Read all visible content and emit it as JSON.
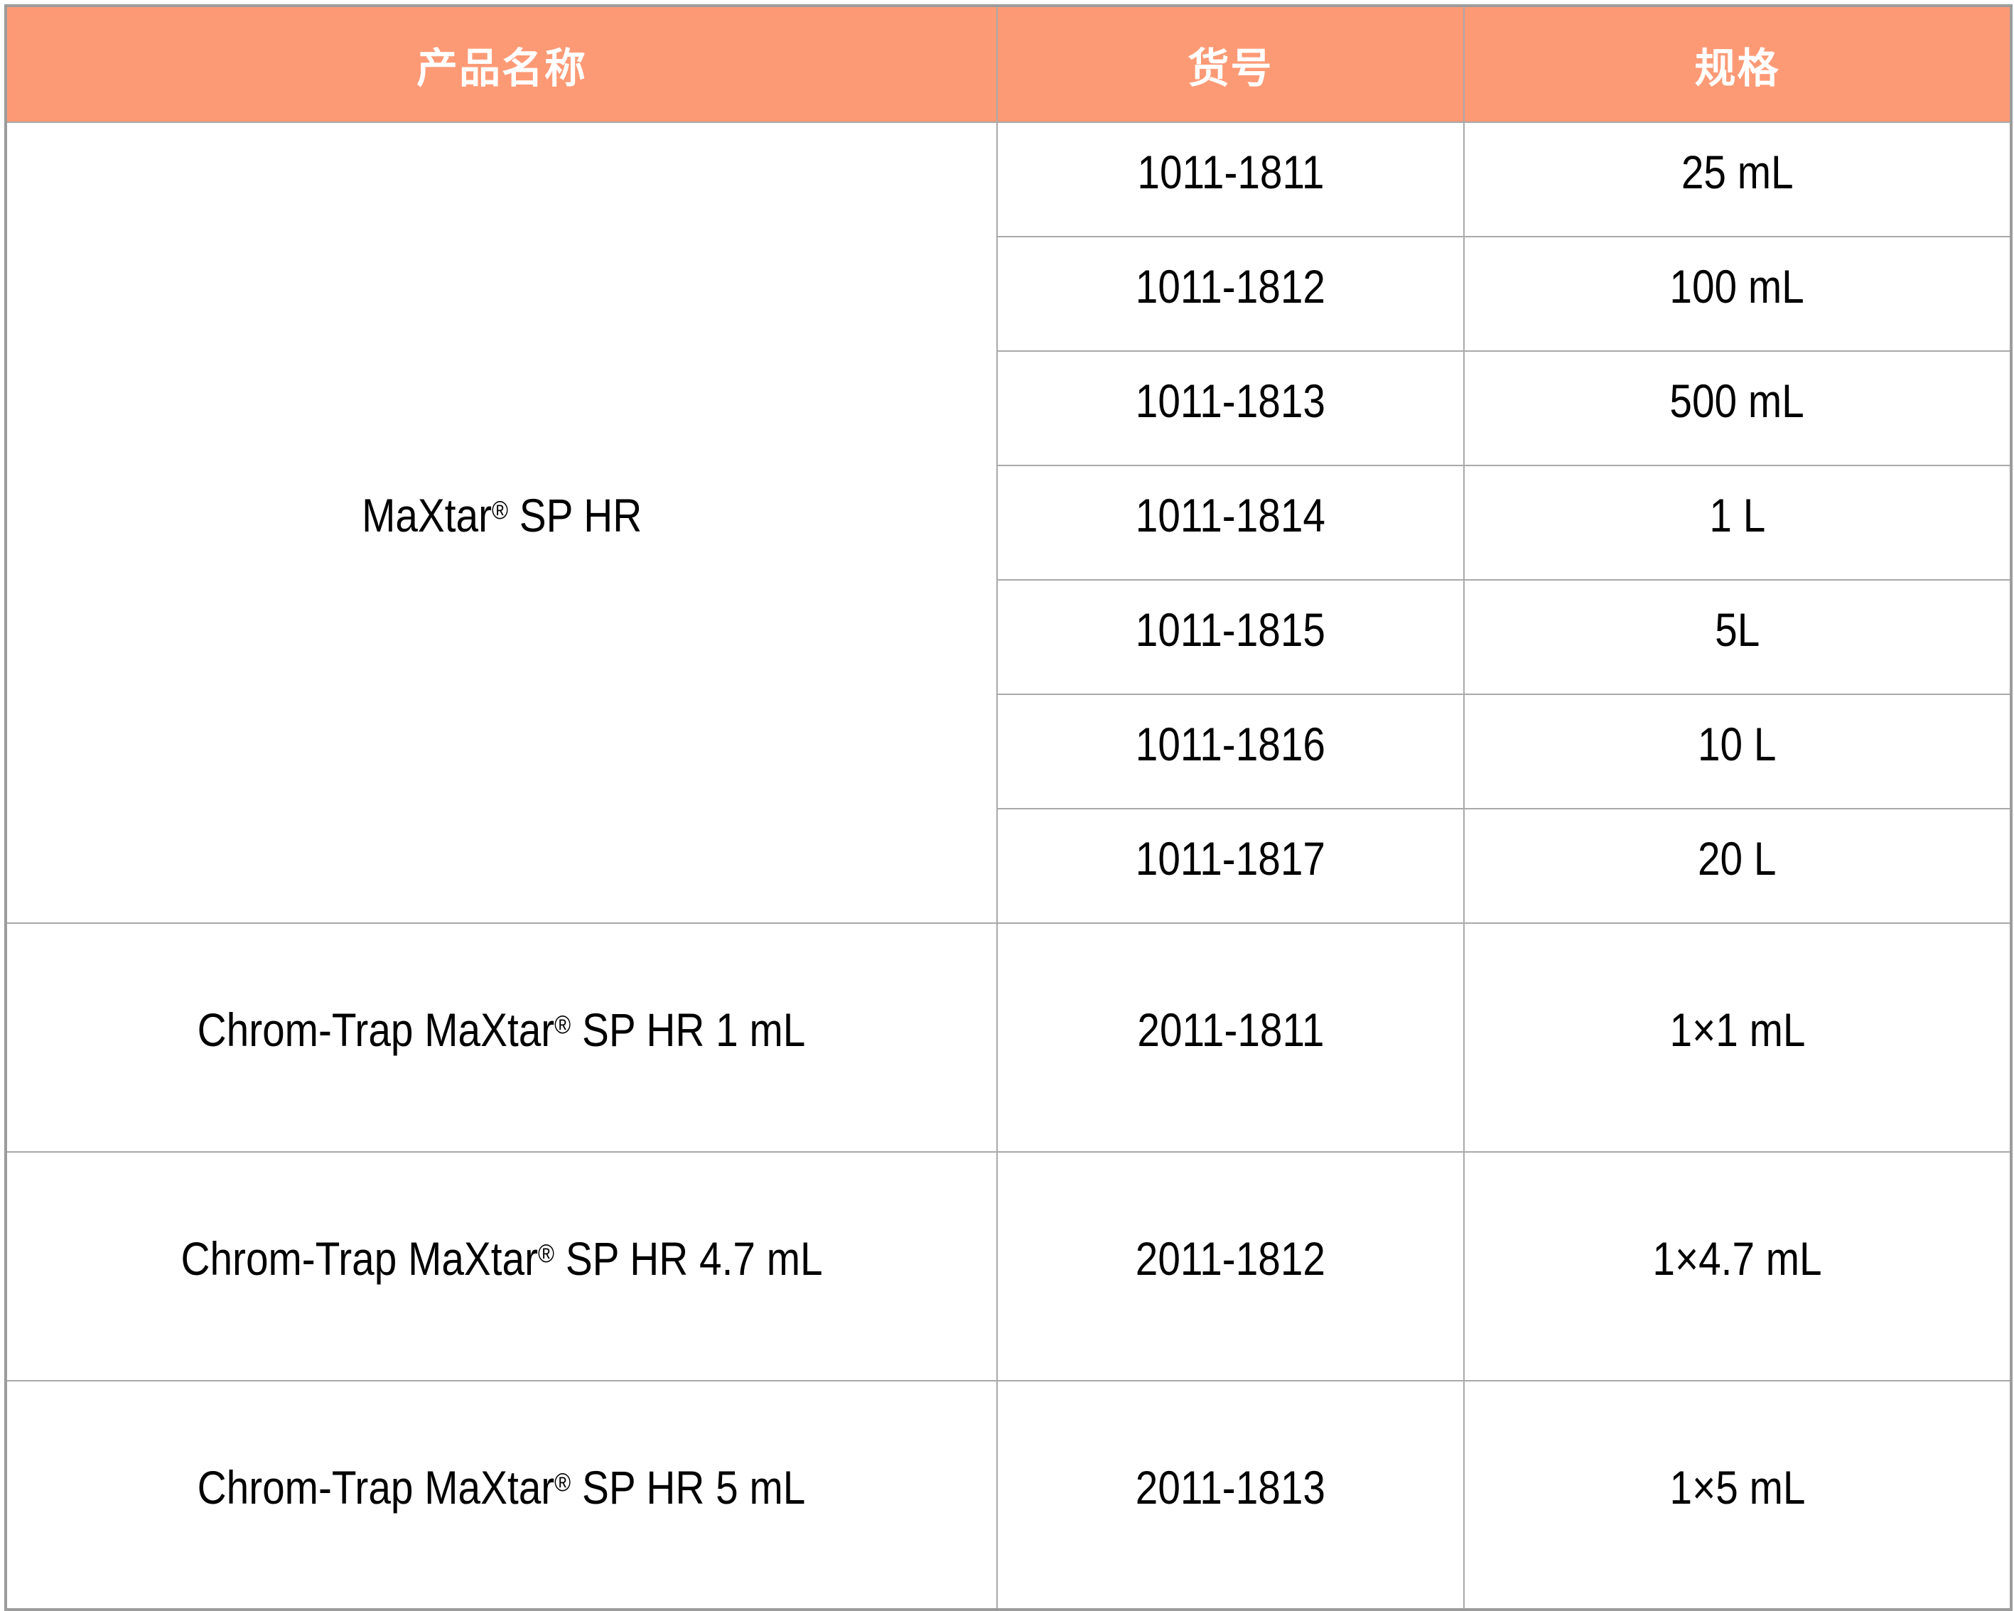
{
  "header": {
    "product_label": "产品名称",
    "catalog_label": "货号",
    "spec_label": "规格"
  },
  "groups": [
    {
      "product": {
        "pre": "MaXtar",
        "sup": "®",
        "post": " SP HR"
      },
      "items": [
        {
          "catalog": "1011-1811",
          "spec": "25 mL"
        },
        {
          "catalog": "1011-1812",
          "spec": "100 mL"
        },
        {
          "catalog": "1011-1813",
          "spec": "500 mL"
        },
        {
          "catalog": "1011-1814",
          "spec": "1 L"
        },
        {
          "catalog": "1011-1815",
          "spec": "5L"
        },
        {
          "catalog": "1011-1816",
          "spec": "10 L"
        },
        {
          "catalog": "1011-1817",
          "spec": "20 L"
        }
      ]
    },
    {
      "product": {
        "pre": "Chrom-Trap MaXtar",
        "sup": "®",
        "post": " SP HR 1 mL"
      },
      "items": [
        {
          "catalog": "2011-1811",
          "spec": "1×1 mL"
        }
      ]
    },
    {
      "product": {
        "pre": "Chrom-Trap MaXtar",
        "sup": "®",
        "post": " SP HR 4.7 mL"
      },
      "items": [
        {
          "catalog": "2011-1812",
          "spec": "1×4.7 mL"
        }
      ]
    },
    {
      "product": {
        "pre": "Chrom-Trap MaXtar",
        "sup": "®",
        "post": " SP HR 5 mL"
      },
      "items": [
        {
          "catalog": "2011-1813",
          "spec": "1×5 mL"
        }
      ]
    }
  ],
  "colors": {
    "header_bg": "#FD9A76",
    "header_text": "#FFFFFF",
    "body_text": "#000000",
    "body_bg": "#FFFFFF",
    "grid_line": "#A9A9A9",
    "outer_border": "#9C9C9C"
  }
}
